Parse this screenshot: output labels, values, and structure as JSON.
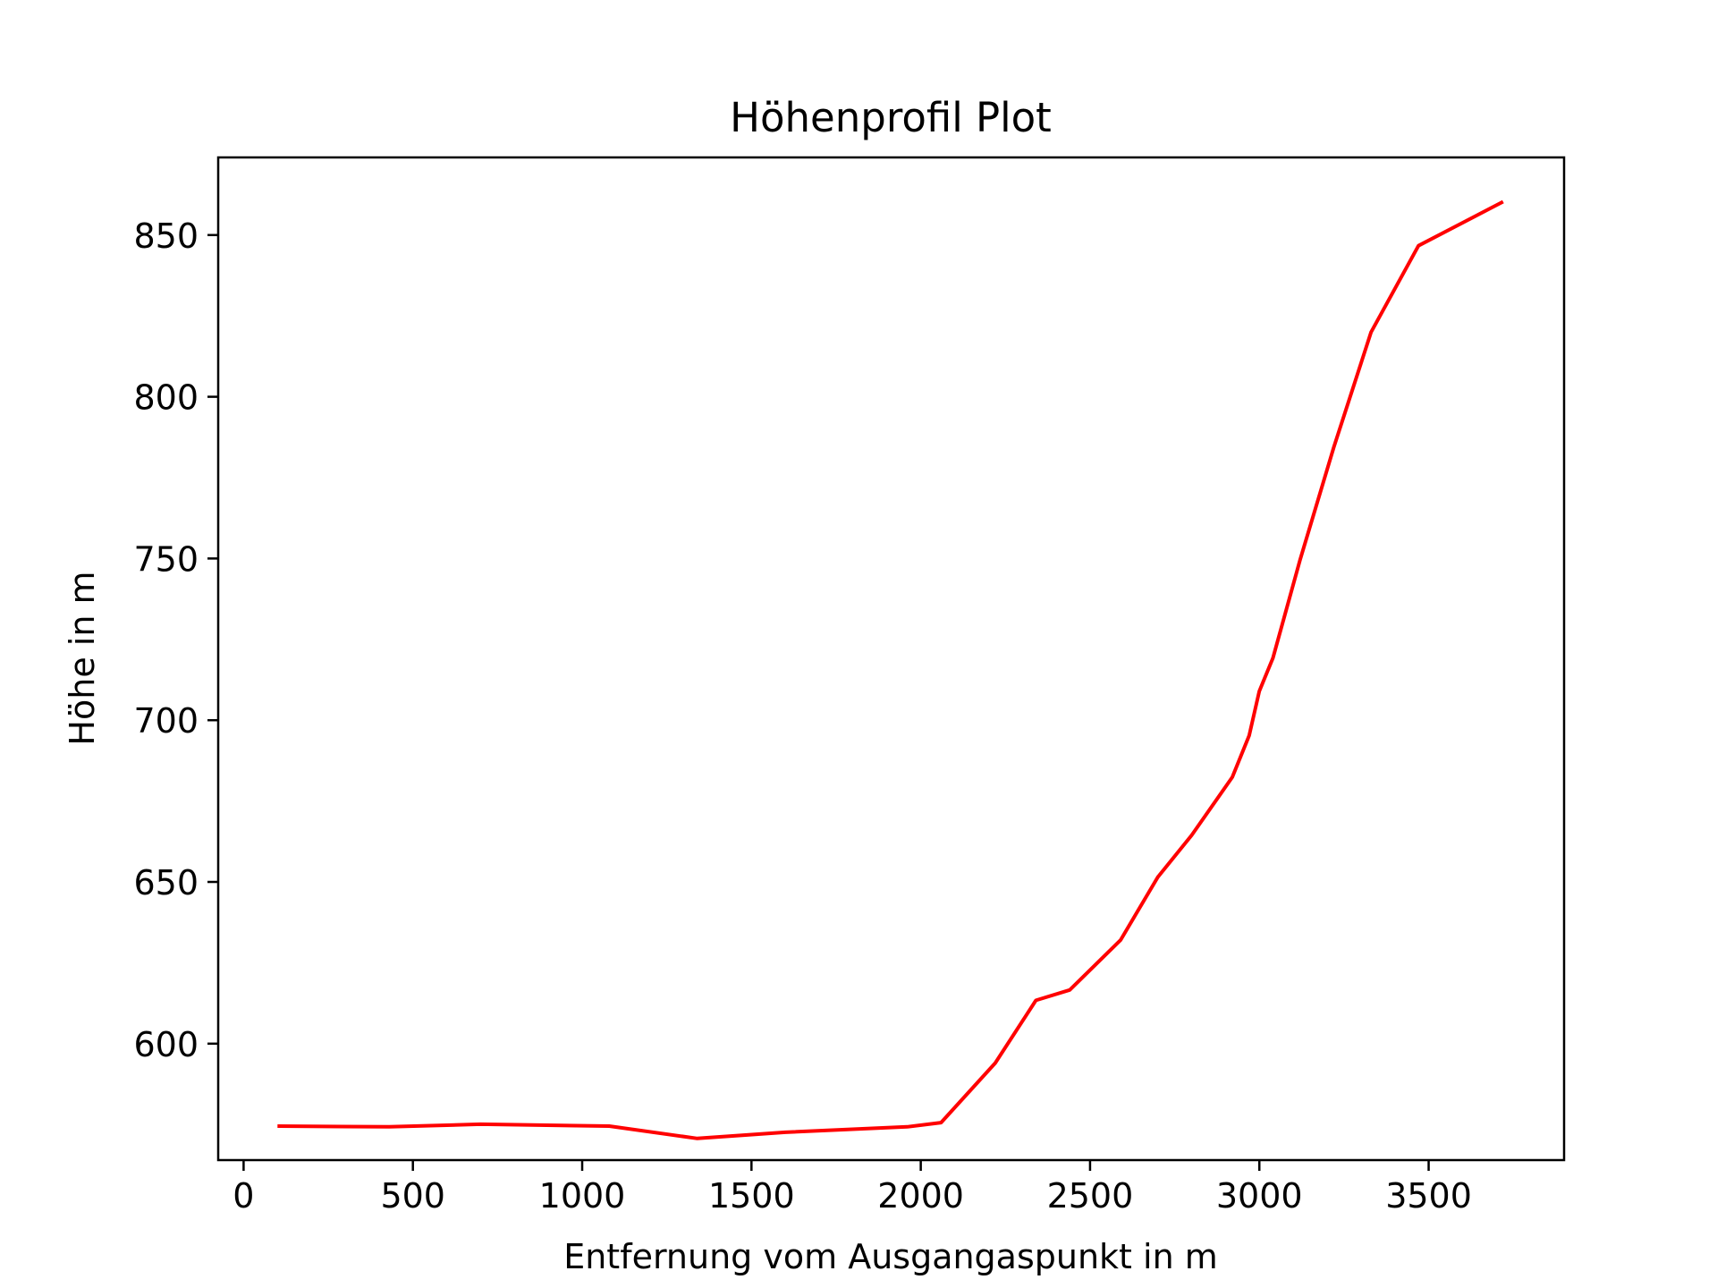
{
  "chart_data": {
    "type": "line",
    "title": "Höhenprofil Plot",
    "xlabel": "Entfernung vom Ausgangaspunkt in m",
    "ylabel": "Höhe in m",
    "xlim": [
      -75,
      3900
    ],
    "ylim": [
      564,
      874
    ],
    "xticks": [
      0,
      500,
      1000,
      1500,
      2000,
      2500,
      3000,
      3500
    ],
    "yticks": [
      600,
      650,
      700,
      750,
      800,
      850
    ],
    "grid": false,
    "legend": "none",
    "series": [
      {
        "color": "#ff0000",
        "x": [
          100,
          430,
          700,
          1080,
          1340,
          1600,
          1960,
          2060,
          2220,
          2340,
          2440,
          2590,
          2700,
          2800,
          2920,
          2970,
          3000,
          3040,
          3120,
          3220,
          3330,
          3470,
          3720
        ],
        "y": [
          574.5,
          574.3,
          575.1,
          574.5,
          570.7,
          572.6,
          574.3,
          575.6,
          594.0,
          613.4,
          616.6,
          632.0,
          651.5,
          664.4,
          682.4,
          695.3,
          709.0,
          719.2,
          749.5,
          784.4,
          820.0,
          846.7,
          860.3
        ]
      }
    ]
  }
}
